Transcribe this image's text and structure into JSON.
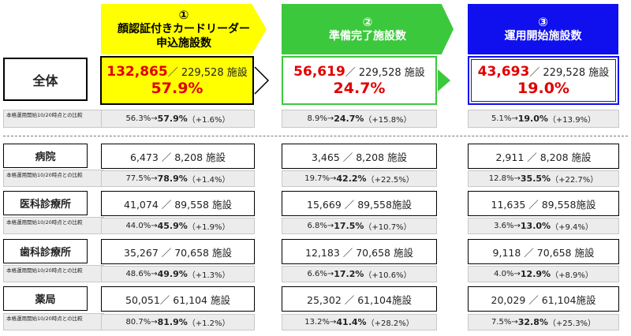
{
  "steps": [
    {
      "num": "①",
      "title_line1": "顔認証付きカードリーダー",
      "title_line2": "申込施設数"
    },
    {
      "num": "②",
      "title": "準備完了施設数"
    },
    {
      "num": "③",
      "title": "運用開始施設数"
    }
  ],
  "overall": {
    "label": "全体",
    "cells": [
      {
        "count": "132,865",
        "rest": "／ 229,528 施設",
        "percent": "57.9%"
      },
      {
        "count": "56,619",
        "rest": "／ 229,528 施設",
        "percent": "24.7%"
      },
      {
        "count": "43,693",
        "rest": "／ 229,528 施設",
        "percent": "19.0%"
      }
    ],
    "comparison_label": "本格運用開始10/20時点との比較",
    "comparisons": [
      {
        "from": "56.3%→",
        "to": "57.9%",
        "delta": "（+1.6%）"
      },
      {
        "from": "8.9%→",
        "to": "24.7%",
        "delta": "（+15.8%）"
      },
      {
        "from": "5.1%→",
        "to": "19.0%",
        "delta": "（+13.9%）"
      }
    ]
  },
  "categories": [
    {
      "label": "病院",
      "comparison_label": "本格運用開始10/20時点との比較",
      "values": [
        "6,473 ／ 8,208 施設",
        "3,465 ／ 8,208 施設",
        "2,911 ／ 8,208 施設"
      ],
      "comparisons": [
        {
          "from": "77.5%→",
          "to": "78.9%",
          "delta": "（+1.4%）"
        },
        {
          "from": "19.7%→",
          "to": "42.2%",
          "delta": "（+22.5%）"
        },
        {
          "from": "12.8%→",
          "to": "35.5%",
          "delta": "（+22.7%）"
        }
      ]
    },
    {
      "label": "医科診療所",
      "comparison_label": "本格運用開始10/20時点との比較",
      "values": [
        "41,074 ／ 89,558 施設",
        "15,669 ／ 89,558施設",
        "11,635 ／ 89,558施設"
      ],
      "comparisons": [
        {
          "from": "44.0%→",
          "to": "45.9%",
          "delta": "（+1.9%）"
        },
        {
          "from": "6.8%→",
          "to": "17.5%",
          "delta": "（+10.7%）"
        },
        {
          "from": "3.6%→",
          "to": "13.0%",
          "delta": "（+9.4%）"
        }
      ]
    },
    {
      "label": "歯科診療所",
      "comparison_label": "本格運用開始10/20時点との比較",
      "values": [
        "35,267 ／ 70,658 施設",
        "12,183 ／ 70,658 施設",
        "9,118 ／ 70,658 施設"
      ],
      "comparisons": [
        {
          "from": "48.6%→",
          "to": "49.9%",
          "delta": "（+1.3%）"
        },
        {
          "from": "6.6%→",
          "to": "17.2%",
          "delta": "（+10.6%）"
        },
        {
          "from": "4.0%→",
          "to": "12.9%",
          "delta": "（+8.9%）"
        }
      ]
    },
    {
      "label": "薬局",
      "comparison_label": "本格運用開始10/20時点との比較",
      "values": [
        "50,051／ 61,104 施設",
        "25,302 ／ 61,104施設",
        "20,029 ／ 61,104施設"
      ],
      "comparisons": [
        {
          "from": "80.7%→",
          "to": "81.9%",
          "delta": "（+1.2%）"
        },
        {
          "from": "13.2%→",
          "to": "41.4%",
          "delta": "（+28.2%）"
        },
        {
          "from": "7.5%→",
          "to": "32.8%",
          "delta": "（+25.3%）"
        }
      ]
    }
  ],
  "colors": {
    "step1": "#ffff00",
    "step2": "#3cc83c",
    "step3": "#1010ee",
    "highlight": "#e00000"
  }
}
